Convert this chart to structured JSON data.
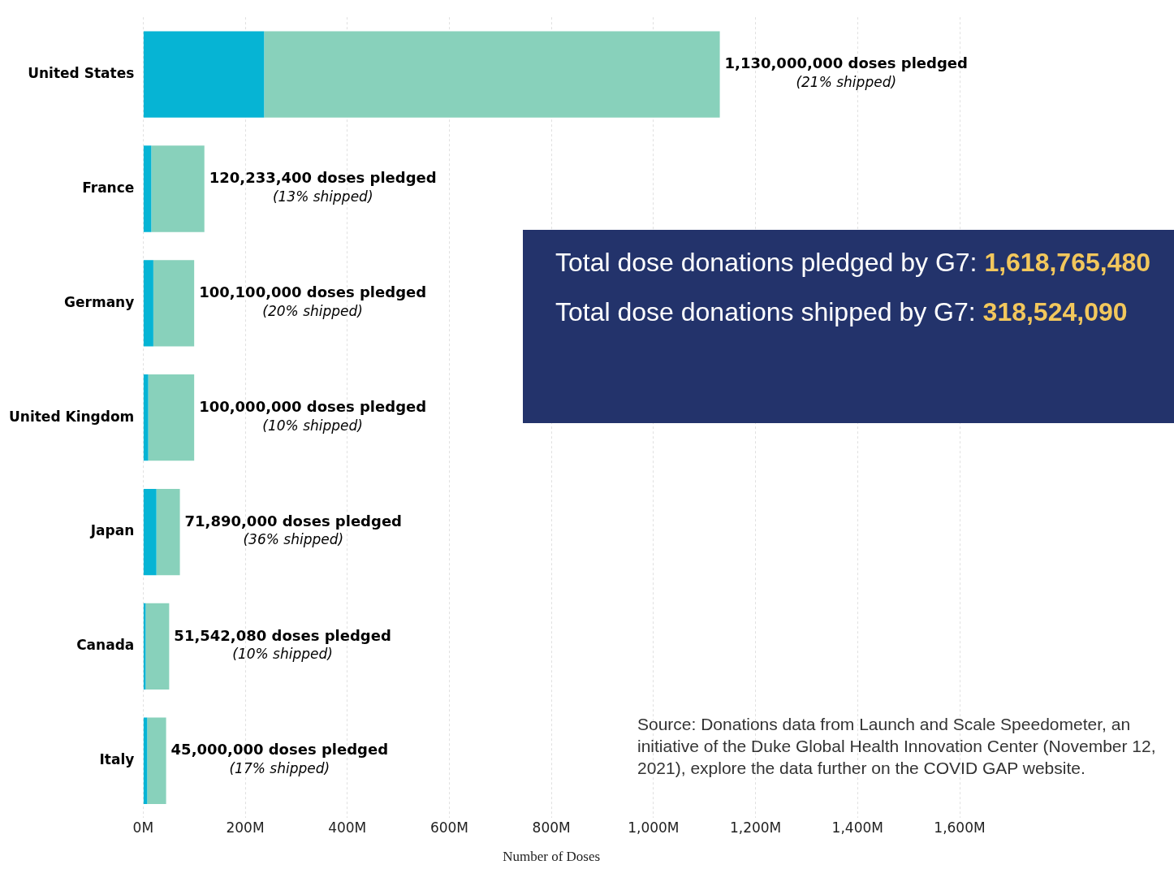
{
  "chart_data": {
    "type": "bar",
    "orientation": "horizontal",
    "stacked": true,
    "categories": [
      "United States",
      "France",
      "Germany",
      "United Kingdom",
      "Japan",
      "Canada",
      "Italy"
    ],
    "series": [
      {
        "color": "#06b4d4",
        "values": [
          237,
          16,
          20,
          10,
          26,
          5,
          8
        ]
      },
      {
        "color": "#88d1bb",
        "values": [
          893,
          104,
          80,
          90,
          46,
          46,
          37
        ]
      }
    ],
    "totals": [
      "1,130,000,000 doses pledged\n(21% shipped)",
      "120,233,400 doses pledged\n(13% shipped)",
      "100,100,000 doses pledged\n(20% shipped)",
      "100,000,000 doses pledged\n(10% shipped)",
      "71,890,000 doses pledged\n(36% shipped)",
      "51,542,080 doses pledged\n(10% shipped)",
      "45,000,000 doses pledged\n(17% shipped)"
    ],
    "xlabel": "Number of Doses",
    "xlim": [
      0,
      1600
    ],
    "xticks": [
      {
        "value": 0,
        "label": "0M"
      },
      {
        "value": 200,
        "label": "200M"
      },
      {
        "value": 400,
        "label": "400M"
      },
      {
        "value": 600,
        "label": "600M"
      },
      {
        "value": 800,
        "label": "800M"
      },
      {
        "value": 1000,
        "label": "1,000M"
      },
      {
        "value": 1200,
        "label": "1,200M"
      },
      {
        "value": 1400,
        "label": "1,400M"
      },
      {
        "value": 1600,
        "label": "1,600M"
      }
    ],
    "grid": "x",
    "annotations": [
      "Total dose donations pledged by G7: 1,618,765,480",
      "Total dose donations shipped by G7: 318,524,090",
      "Source: Donations data from Launch and Scale Speedometer, an initiative of the Duke Global Health Innovation Center (November 12, 2021), explore the data further on the COVID GAP website."
    ]
  }
}
